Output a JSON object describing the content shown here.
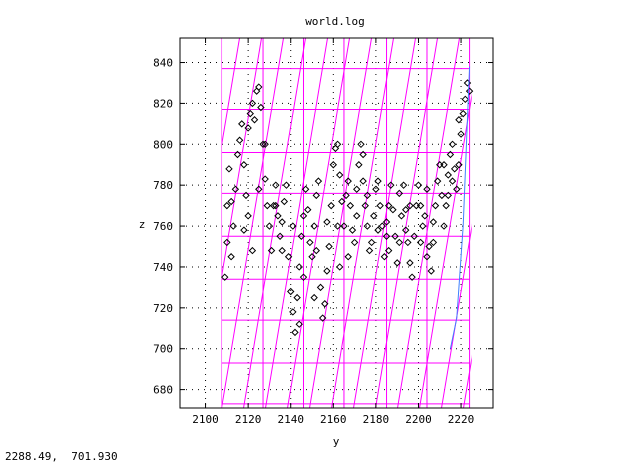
{
  "status_readout": "2288.49,  701.930",
  "colors": {
    "mesh": "#ff00ff",
    "points": "#000000",
    "accent_line": "#4080ff",
    "grid": "#000000"
  },
  "chart_data": {
    "type": "scatter",
    "title": "world.log",
    "xlabel": "y",
    "ylabel": "z",
    "xlim": [
      2088,
      2235
    ],
    "ylim": [
      671,
      852
    ],
    "grid": true,
    "xticks": [
      2100,
      2120,
      2140,
      2160,
      2180,
      2200,
      2220
    ],
    "yticks": [
      680,
      700,
      720,
      740,
      760,
      780,
      800,
      820,
      840
    ],
    "marker": "diamond",
    "points": [
      [
        2109,
        735
      ],
      [
        2110,
        752
      ],
      [
        2110,
        770
      ],
      [
        2111,
        788
      ],
      [
        2112,
        745
      ],
      [
        2113,
        760
      ],
      [
        2114,
        778
      ],
      [
        2115,
        795
      ],
      [
        2116,
        802
      ],
      [
        2117,
        810
      ],
      [
        2118,
        790
      ],
      [
        2119,
        775
      ],
      [
        2120,
        765
      ],
      [
        2120,
        808
      ],
      [
        2121,
        815
      ],
      [
        2122,
        820
      ],
      [
        2123,
        812
      ],
      [
        2124,
        826
      ],
      [
        2125,
        828
      ],
      [
        2126,
        818
      ],
      [
        2127,
        800
      ],
      [
        2128,
        783
      ],
      [
        2129,
        770
      ],
      [
        2130,
        760
      ],
      [
        2131,
        748
      ],
      [
        2132,
        770
      ],
      [
        2133,
        780
      ],
      [
        2134,
        765
      ],
      [
        2135,
        755
      ],
      [
        2136,
        762
      ],
      [
        2137,
        772
      ],
      [
        2138,
        780
      ],
      [
        2139,
        745
      ],
      [
        2140,
        728
      ],
      [
        2141,
        718
      ],
      [
        2142,
        708
      ],
      [
        2143,
        725
      ],
      [
        2144,
        740
      ],
      [
        2145,
        755
      ],
      [
        2146,
        765
      ],
      [
        2147,
        778
      ],
      [
        2148,
        768
      ],
      [
        2149,
        752
      ],
      [
        2150,
        745
      ],
      [
        2151,
        760
      ],
      [
        2152,
        775
      ],
      [
        2153,
        782
      ],
      [
        2154,
        730
      ],
      [
        2155,
        715
      ],
      [
        2156,
        722
      ],
      [
        2157,
        738
      ],
      [
        2158,
        750
      ],
      [
        2159,
        770
      ],
      [
        2160,
        790
      ],
      [
        2161,
        798
      ],
      [
        2162,
        800
      ],
      [
        2163,
        785
      ],
      [
        2164,
        772
      ],
      [
        2165,
        760
      ],
      [
        2166,
        775
      ],
      [
        2167,
        782
      ],
      [
        2168,
        770
      ],
      [
        2169,
        758
      ],
      [
        2170,
        752
      ],
      [
        2171,
        765
      ],
      [
        2172,
        790
      ],
      [
        2173,
        800
      ],
      [
        2174,
        782
      ],
      [
        2175,
        770
      ],
      [
        2176,
        760
      ],
      [
        2177,
        748
      ],
      [
        2178,
        752
      ],
      [
        2179,
        765
      ],
      [
        2180,
        778
      ],
      [
        2181,
        782
      ],
      [
        2182,
        770
      ],
      [
        2183,
        760
      ],
      [
        2184,
        745
      ],
      [
        2185,
        755
      ],
      [
        2186,
        770
      ],
      [
        2187,
        780
      ],
      [
        2188,
        768
      ],
      [
        2189,
        755
      ],
      [
        2190,
        742
      ],
      [
        2191,
        752
      ],
      [
        2192,
        765
      ],
      [
        2193,
        780
      ],
      [
        2194,
        768
      ],
      [
        2195,
        752
      ],
      [
        2196,
        742
      ],
      [
        2197,
        735
      ],
      [
        2198,
        755
      ],
      [
        2199,
        770
      ],
      [
        2200,
        780
      ],
      [
        2201,
        770
      ],
      [
        2202,
        760
      ],
      [
        2203,
        765
      ],
      [
        2204,
        778
      ],
      [
        2205,
        750
      ],
      [
        2206,
        738
      ],
      [
        2207,
        752
      ],
      [
        2208,
        770
      ],
      [
        2209,
        782
      ],
      [
        2210,
        790
      ],
      [
        2211,
        775
      ],
      [
        2212,
        760
      ],
      [
        2213,
        770
      ],
      [
        2214,
        785
      ],
      [
        2215,
        795
      ],
      [
        2216,
        800
      ],
      [
        2217,
        788
      ],
      [
        2218,
        778
      ],
      [
        2219,
        790
      ],
      [
        2220,
        805
      ],
      [
        2221,
        815
      ],
      [
        2222,
        822
      ],
      [
        2223,
        830
      ],
      [
        2224,
        826
      ],
      [
        2112,
        772
      ],
      [
        2118,
        758
      ],
      [
        2125,
        778
      ],
      [
        2136,
        748
      ],
      [
        2146,
        735
      ],
      [
        2157,
        762
      ],
      [
        2167,
        745
      ],
      [
        2176,
        775
      ],
      [
        2186,
        748
      ],
      [
        2196,
        770
      ],
      [
        2207,
        762
      ],
      [
        2214,
        775
      ],
      [
        2122,
        748
      ],
      [
        2133,
        770
      ],
      [
        2141,
        760
      ],
      [
        2152,
        748
      ],
      [
        2162,
        760
      ],
      [
        2171,
        778
      ],
      [
        2181,
        758
      ],
      [
        2191,
        776
      ],
      [
        2201,
        752
      ],
      [
        2212,
        790
      ],
      [
        2219,
        812
      ],
      [
        2128,
        800
      ],
      [
        2144,
        712
      ],
      [
        2151,
        725
      ],
      [
        2163,
        740
      ],
      [
        2174,
        795
      ],
      [
        2185,
        762
      ],
      [
        2194,
        758
      ],
      [
        2204,
        745
      ],
      [
        2216,
        782
      ]
    ],
    "accent_line_points": [
      [
        2224,
        838
      ],
      [
        2221,
        760
      ],
      [
        2218,
        715
      ],
      [
        2215,
        700
      ]
    ]
  }
}
